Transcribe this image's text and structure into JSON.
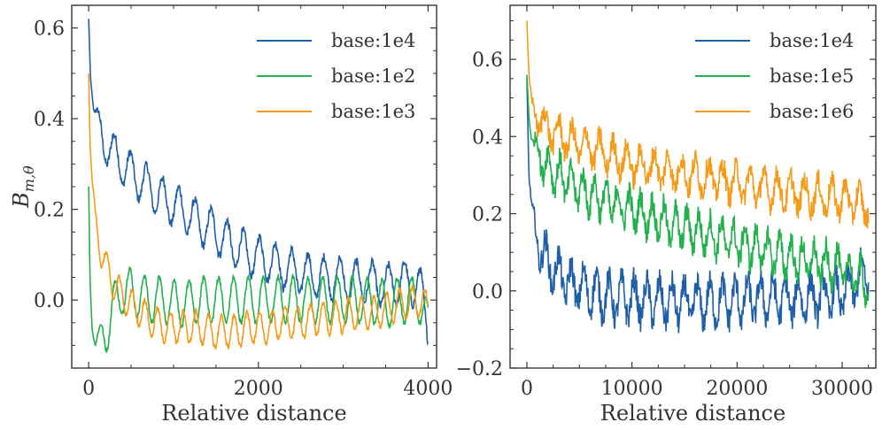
{
  "colors": {
    "blue": "#1f5fa8",
    "green": "#22b14c",
    "orange": "#f59b1a"
  },
  "chart_data": [
    {
      "type": "line",
      "title": "",
      "xlabel": "Relative distance",
      "ylabel": "B_{m,θ}",
      "ylabel_display": "B",
      "ylabel_sub": "m,θ",
      "xlim": [
        -200,
        4100
      ],
      "ylim": [
        -0.15,
        0.65
      ],
      "xticks": [
        0,
        2000,
        4000
      ],
      "xtick_labels": [
        "0",
        "2000",
        "4000"
      ],
      "yticks": [
        0.0,
        0.2,
        0.4,
        0.6
      ],
      "ytick_labels": [
        "0.0",
        "0.2",
        "0.4",
        "0.6"
      ],
      "legend_position": "top-right",
      "series": [
        {
          "name": "base:1e4",
          "color": "#1f5fa8",
          "x": [
            0,
            20,
            60,
            150,
            300,
            500,
            700,
            900,
            1100,
            1300,
            1500,
            1700,
            1900,
            2100,
            2300,
            2500,
            2700,
            2900,
            3100,
            3300,
            3500,
            3700,
            3900,
            4000
          ],
          "y": [
            0.62,
            0.5,
            0.42,
            0.36,
            0.32,
            0.28,
            0.25,
            0.22,
            0.2,
            0.17,
            0.15,
            0.12,
            0.1,
            0.09,
            0.07,
            0.06,
            0.05,
            0.05,
            0.04,
            0.04,
            0.03,
            0.04,
            0.03,
            -0.05
          ]
        },
        {
          "name": "base:1e2",
          "color": "#22b14c",
          "x": [
            0,
            15,
            40,
            80,
            130,
            200,
            300,
            400,
            500,
            700,
            900,
            1100,
            1300,
            1500,
            1700,
            1900,
            2100,
            2300,
            2500,
            2700,
            2900,
            3100,
            3300,
            3500,
            3700,
            3900,
            4000
          ],
          "y": [
            0.25,
            0.05,
            -0.05,
            -0.09,
            -0.1,
            -0.07,
            -0.01,
            0.02,
            0.02,
            0.0,
            0.0,
            -0.01,
            0.0,
            0.0,
            0.0,
            0.0,
            0.0,
            0.0,
            0.0,
            0.0,
            0.0,
            0.0,
            0.0,
            -0.01,
            0.0,
            0.0,
            -0.06
          ]
        },
        {
          "name": "base:1e3",
          "color": "#f59b1a",
          "x": [
            0,
            15,
            40,
            80,
            150,
            250,
            350,
            500,
            700,
            900,
            1100,
            1300,
            1500,
            1700,
            1900,
            2100,
            2300,
            2500,
            2700,
            2900,
            3100,
            3300,
            3500,
            3700,
            3900,
            4000
          ],
          "y": [
            0.5,
            0.35,
            0.26,
            0.18,
            0.1,
            0.05,
            0.02,
            -0.01,
            -0.04,
            -0.06,
            -0.06,
            -0.06,
            -0.07,
            -0.07,
            -0.06,
            -0.06,
            -0.05,
            -0.05,
            -0.04,
            -0.04,
            -0.03,
            -0.03,
            -0.02,
            -0.01,
            0.0,
            -0.02
          ]
        }
      ],
      "wiggles": [
        {
          "amp": 0.045,
          "period": 190,
          "noise": 0.01
        },
        {
          "amp": 0.05,
          "period": 175,
          "noise": 0.006
        },
        {
          "amp": 0.035,
          "period": 150,
          "noise": 0.006
        }
      ]
    },
    {
      "type": "line",
      "title": "",
      "xlabel": "Relative distance",
      "ylabel": "",
      "xlim": [
        -1600,
        33200
      ],
      "ylim": [
        -0.2,
        0.74
      ],
      "xticks": [
        0,
        10000,
        20000,
        30000
      ],
      "xtick_labels": [
        "0",
        "10000",
        "20000",
        "30000"
      ],
      "yticks": [
        -0.2,
        0.0,
        0.2,
        0.4,
        0.6
      ],
      "ytick_labels": [
        "−0.2",
        "0.0",
        "0.2",
        "0.4",
        "0.6"
      ],
      "legend_position": "top-right",
      "series": [
        {
          "name": "base:1e4",
          "color": "#1f5fa8",
          "x": [
            0,
            200,
            500,
            1000,
            2000,
            4000,
            6000,
            8000,
            10000,
            14000,
            18000,
            22000,
            26000,
            30000,
            32500
          ],
          "y": [
            0.55,
            0.3,
            0.2,
            0.13,
            0.07,
            0.02,
            0.0,
            -0.02,
            -0.02,
            -0.03,
            -0.03,
            -0.02,
            -0.02,
            -0.01,
            0.05
          ]
        },
        {
          "name": "base:1e5",
          "color": "#22b14c",
          "x": [
            0,
            200,
            500,
            1000,
            2000,
            4000,
            6000,
            8000,
            10000,
            14000,
            18000,
            22000,
            26000,
            30000,
            32500
          ],
          "y": [
            0.56,
            0.45,
            0.4,
            0.36,
            0.32,
            0.28,
            0.25,
            0.23,
            0.21,
            0.17,
            0.14,
            0.11,
            0.08,
            0.06,
            0.02
          ]
        },
        {
          "name": "base:1e6",
          "color": "#f59b1a",
          "x": [
            0,
            200,
            500,
            1000,
            2000,
            4000,
            6000,
            8000,
            10000,
            14000,
            18000,
            22000,
            26000,
            30000,
            32500
          ],
          "y": [
            0.7,
            0.55,
            0.48,
            0.45,
            0.42,
            0.39,
            0.37,
            0.35,
            0.33,
            0.31,
            0.29,
            0.27,
            0.25,
            0.24,
            0.22
          ]
        }
      ],
      "wiggles": [
        {
          "amp": 0.05,
          "period": 1200,
          "noise": 0.035
        },
        {
          "amp": 0.045,
          "period": 1100,
          "noise": 0.03
        },
        {
          "amp": 0.04,
          "period": 1300,
          "noise": 0.03
        }
      ]
    }
  ]
}
